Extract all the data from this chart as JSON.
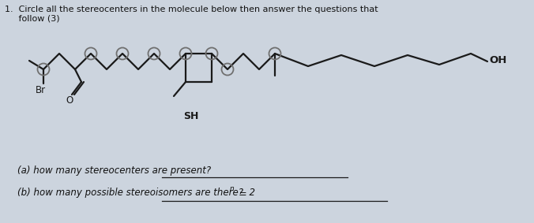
{
  "title_line1": "1.  Circle all the stereocenters in the molecule below then answer the questions that",
  "title_line2": "     follow (3)",
  "question_a": "(a) how many stereocenters are present?",
  "question_b": "(b) how many possible stereoisomers are there?  2",
  "superscript_b": "n",
  "equals_b": " =",
  "line_color": "#1a1a1a",
  "circle_color": "#707070",
  "bg_color": "#ccd4de",
  "text_color": "#111111",
  "label_Br": "Br",
  "label_O": "O",
  "label_SH": "SH",
  "label_OH": "OH",
  "lw": 1.6,
  "circle_r": 7.5
}
